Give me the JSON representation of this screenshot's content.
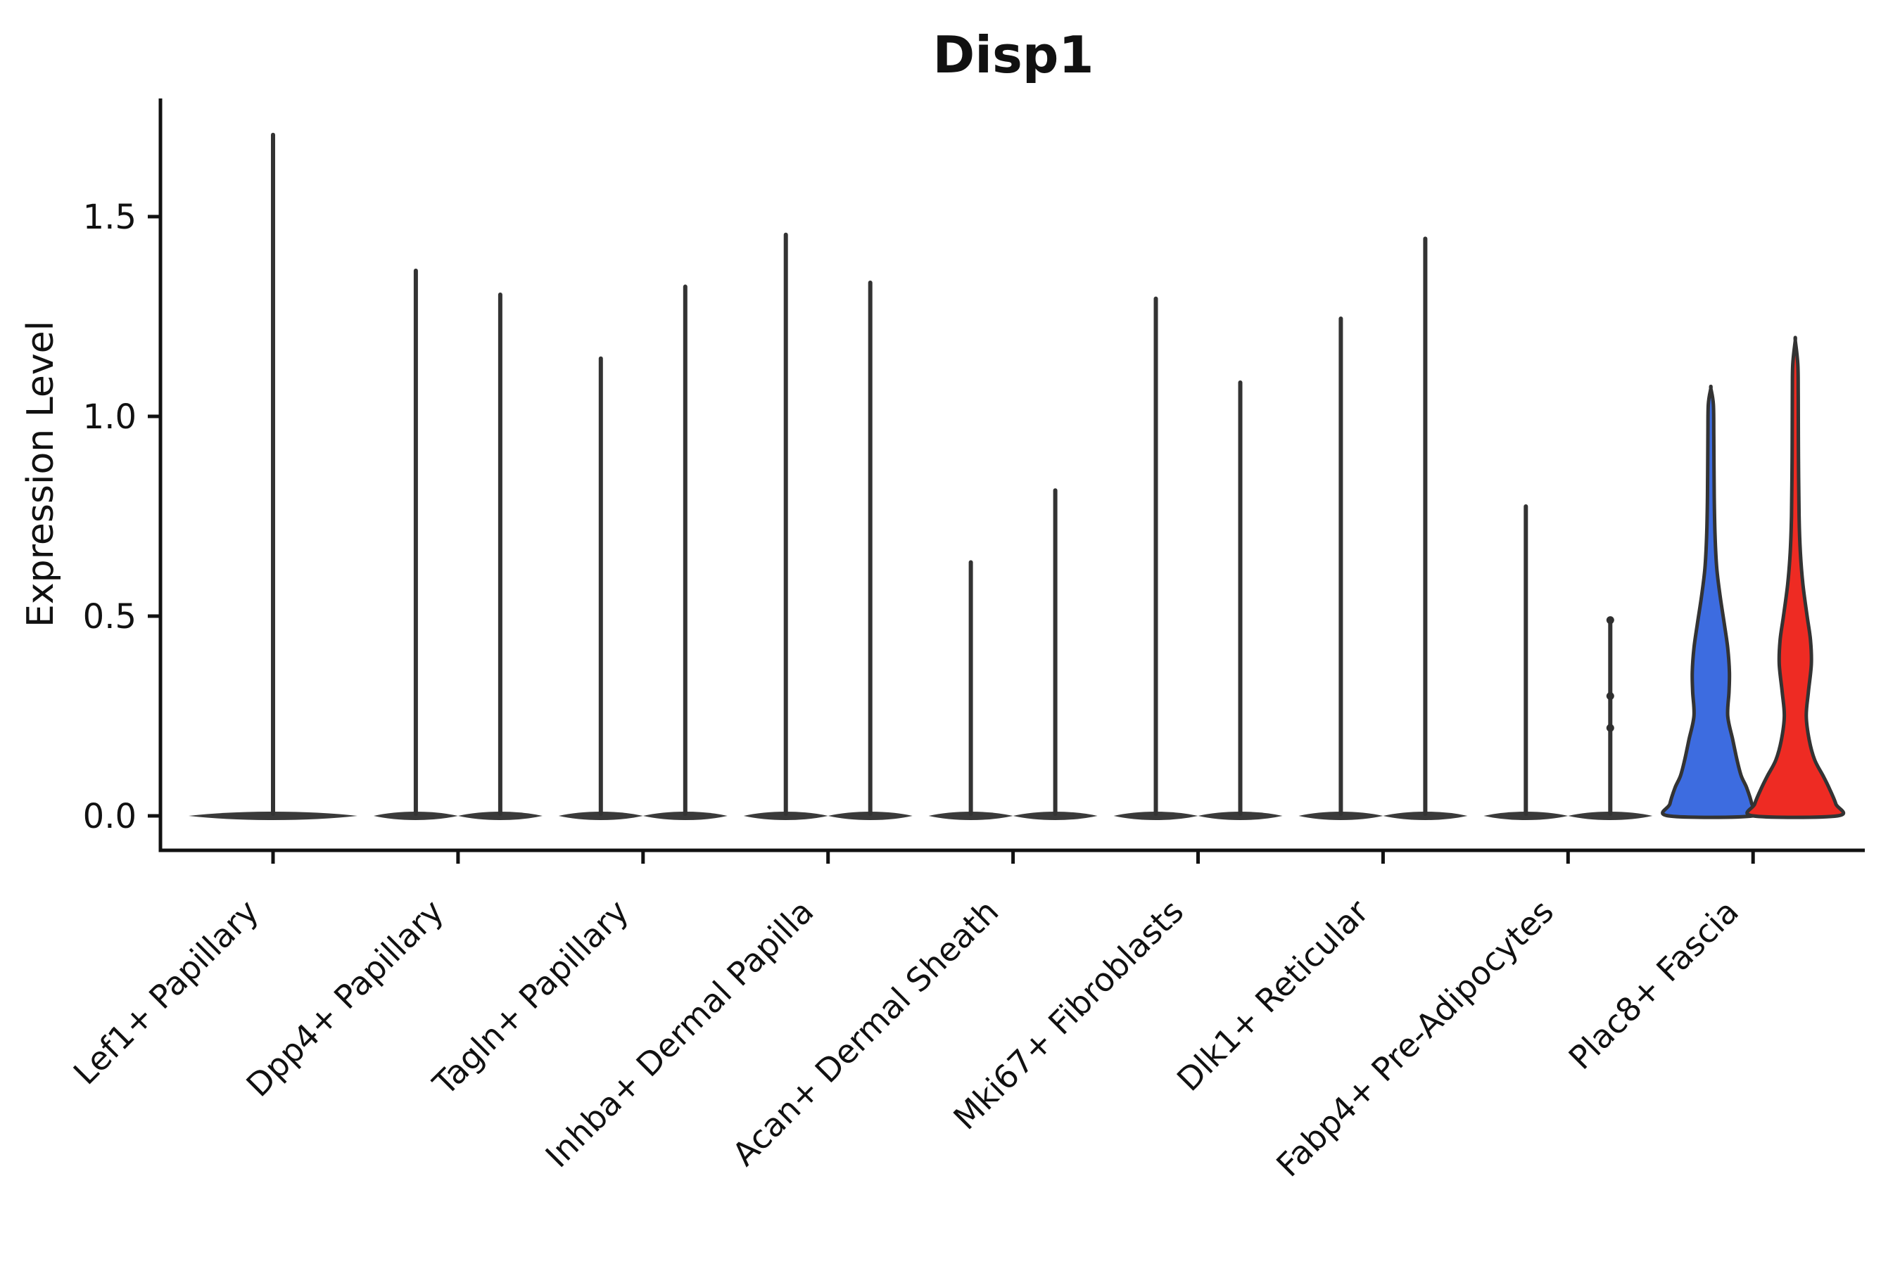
{
  "figure": {
    "title": "Disp1"
  },
  "chart_data": {
    "type": "violin",
    "title": "Disp1",
    "ylabel": "Expression Level",
    "xlabel": "",
    "ylim": [
      -0.09,
      1.88
    ],
    "grid": false,
    "legend_position": "none",
    "yticks": [
      {
        "value": 0.0,
        "label": "0.0"
      },
      {
        "value": 0.5,
        "label": "0.5"
      },
      {
        "value": 1.0,
        "label": "1.0"
      },
      {
        "value": 1.5,
        "label": "1.5"
      }
    ],
    "colors": {
      "outline": "#333333",
      "collapsed_fill": "#3a3a3a",
      "blue_violin": "#3D6CE0",
      "red_violin": "#EE2B23",
      "axis": "#111111"
    },
    "note": "Split violin plot; most violins collapsed to spikes at 0 expression",
    "categories": [
      {
        "label": "Lef1+ Papillary",
        "violins": [
          {
            "position": "center",
            "style": "collapsed",
            "max": 1.71
          }
        ]
      },
      {
        "label": "Dpp4+ Papillary",
        "violins": [
          {
            "position": "left",
            "style": "collapsed",
            "max": 1.37
          },
          {
            "position": "right",
            "style": "collapsed",
            "max": 1.31
          }
        ]
      },
      {
        "label": "Tagln+ Papillary",
        "violins": [
          {
            "position": "left",
            "style": "collapsed",
            "max": 1.15
          },
          {
            "position": "right",
            "style": "collapsed",
            "max": 1.33
          }
        ]
      },
      {
        "label": "Inhba+ Dermal Papilla",
        "violins": [
          {
            "position": "left",
            "style": "collapsed",
            "max": 1.46
          },
          {
            "position": "right",
            "style": "collapsed",
            "max": 1.34
          }
        ]
      },
      {
        "label": "Acan+ Dermal Sheath",
        "violins": [
          {
            "position": "left",
            "style": "collapsed",
            "max": 0.64
          },
          {
            "position": "right",
            "style": "collapsed",
            "max": 0.82
          }
        ]
      },
      {
        "label": "Mki67+ Fibroblasts",
        "violins": [
          {
            "position": "left",
            "style": "collapsed",
            "max": 1.3
          },
          {
            "position": "right",
            "style": "collapsed",
            "max": 1.09
          }
        ]
      },
      {
        "label": "Dlk1+ Reticular",
        "violins": [
          {
            "position": "left",
            "style": "collapsed",
            "max": 1.25
          },
          {
            "position": "right",
            "style": "collapsed",
            "max": 1.45
          }
        ]
      },
      {
        "label": "Fabp4+ Pre-Adipocytes",
        "violins": [
          {
            "position": "left",
            "style": "collapsed",
            "max": 0.78
          },
          {
            "position": "right",
            "style": "collapsed",
            "max": 0.49,
            "dots": [
              0.49,
              0.3,
              0.22
            ]
          }
        ]
      },
      {
        "label": "Plac8+ Fascia",
        "violins": [
          {
            "position": "left",
            "style": "filled",
            "max": 1.07,
            "fill": "#3D6CE0",
            "profile": [
              [
                0,
                1.0
              ],
              [
                0.03,
                0.97
              ],
              [
                0.07,
                0.85
              ],
              [
                0.1,
                0.72
              ],
              [
                0.14,
                0.62
              ],
              [
                0.19,
                0.52
              ],
              [
                0.25,
                0.4
              ],
              [
                0.31,
                0.43
              ],
              [
                0.36,
                0.44
              ],
              [
                0.42,
                0.4
              ],
              [
                0.48,
                0.32
              ],
              [
                0.55,
                0.22
              ],
              [
                0.62,
                0.14
              ],
              [
                0.7,
                0.1
              ],
              [
                0.8,
                0.08
              ],
              [
                0.95,
                0.07
              ],
              [
                1.03,
                0.06
              ],
              [
                1.07,
                0.0
              ]
            ]
          },
          {
            "position": "right",
            "style": "filled",
            "max": 1.19,
            "fill": "#EE2B23",
            "profile": [
              [
                0,
                1.0
              ],
              [
                0.03,
                0.96
              ],
              [
                0.07,
                0.8
              ],
              [
                0.1,
                0.66
              ],
              [
                0.14,
                0.46
              ],
              [
                0.19,
                0.33
              ],
              [
                0.25,
                0.26
              ],
              [
                0.31,
                0.31
              ],
              [
                0.38,
                0.38
              ],
              [
                0.44,
                0.36
              ],
              [
                0.5,
                0.28
              ],
              [
                0.58,
                0.18
              ],
              [
                0.66,
                0.12
              ],
              [
                0.75,
                0.09
              ],
              [
                0.9,
                0.075
              ],
              [
                1.05,
                0.07
              ],
              [
                1.13,
                0.06
              ],
              [
                1.19,
                0.0
              ]
            ]
          }
        ]
      }
    ]
  }
}
